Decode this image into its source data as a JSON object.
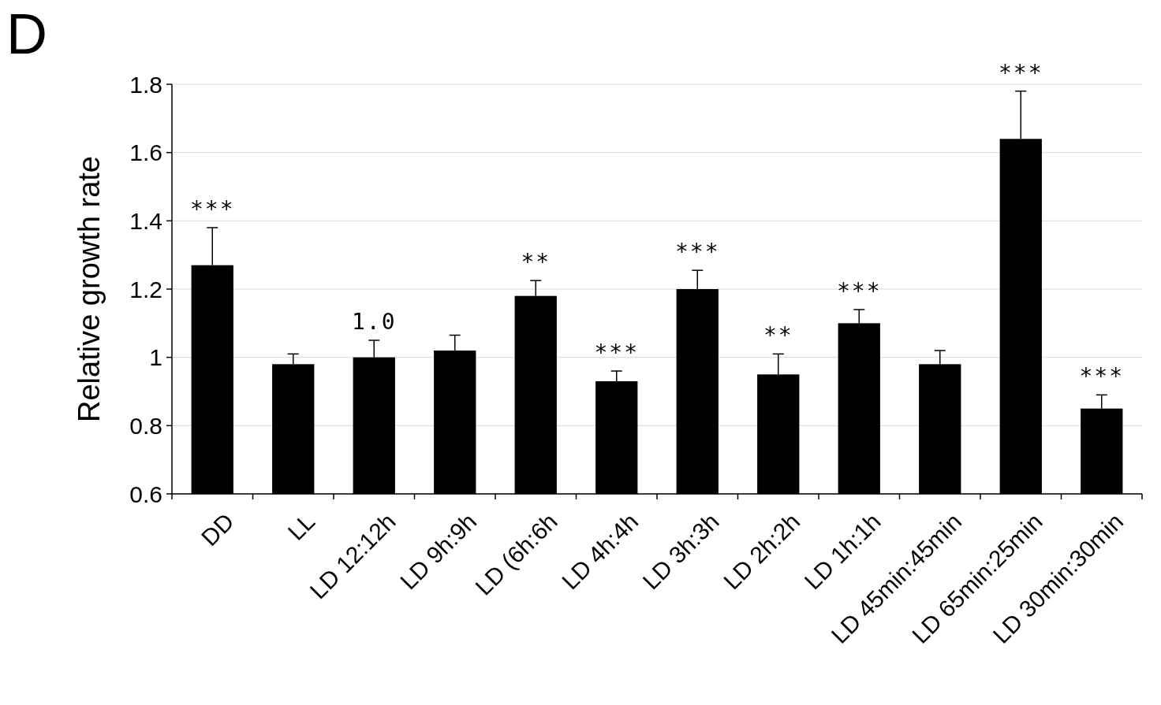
{
  "chart_data": {
    "type": "bar",
    "title": "D",
    "ylabel": "Relative growth rate",
    "categories": [
      "DD",
      "LL",
      "LD 12:12h",
      "LD 9h:9h",
      "LD (6h:6h",
      "LD 4h:4h",
      "LD 3h:3h",
      "LD 2h:2h",
      "LD 1h:1h",
      "LD 45min:45min",
      "LD 65min:25min",
      "LD 30min:30min"
    ],
    "values": [
      1.27,
      0.98,
      1.0,
      1.02,
      1.18,
      0.93,
      1.2,
      0.95,
      1.1,
      0.98,
      1.64,
      0.85
    ],
    "errors": [
      0.11,
      0.03,
      0.05,
      0.045,
      0.045,
      0.03,
      0.055,
      0.06,
      0.04,
      0.04,
      0.14,
      0.04
    ],
    "color": "#000000",
    "ylim": [
      0.6,
      1.8
    ],
    "yticks": [
      0.6,
      0.8,
      1,
      1.2,
      1.4,
      1.6,
      1.8
    ],
    "grid": "y",
    "value_labels": [
      "***",
      null,
      "1.0",
      null,
      "**",
      "***",
      "***",
      "**",
      "***",
      null,
      "***",
      "***"
    ]
  }
}
